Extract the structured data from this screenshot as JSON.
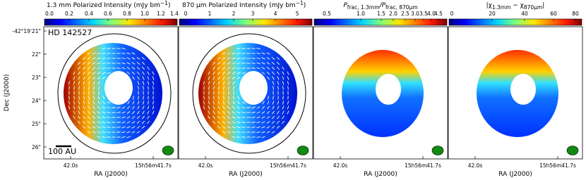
{
  "panels": [
    {
      "colorbar": {
        "label": [
          "1.3 mm Polarized Intensity (mJy bm",
          "−1",
          ")"
        ],
        "ticks": [
          "0.0",
          "0.2",
          "0.4",
          "0.6",
          "0.8",
          "1.0",
          "1.2",
          "1.4"
        ]
      },
      "x_ticks": [
        "42.0s",
        "15h56m41.7s"
      ],
      "x_label": "RA (J2000)"
    },
    {
      "colorbar": {
        "label": [
          "870 μm Polarized Intensity (mJy bm",
          "−1",
          ")"
        ],
        "ticks": [
          "0",
          "1",
          "2",
          "3",
          "4",
          "5"
        ]
      },
      "x_ticks": [
        "42.0s",
        "15h56m41.7s"
      ],
      "x_label": "RA (J2000)"
    },
    {
      "colorbar": {
        "label": [
          "P",
          "frac, 1.3mm",
          "/P",
          "frac, 870μm"
        ],
        "ticks": [
          "0.5",
          "1.0",
          "1.5",
          "2.0",
          "2.5",
          "3.0",
          "3.5",
          "4.0",
          "4.5"
        ]
      },
      "x_ticks": [
        "42.0s",
        "15h56m41.7s"
      ],
      "x_label": "RA (J2000)"
    },
    {
      "colorbar": {
        "label": [
          "|χ",
          "1.3mm",
          " − χ",
          "870μm",
          "|"
        ],
        "ticks": [
          "0",
          "20",
          "40",
          "60",
          "80"
        ]
      },
      "x_ticks": [
        "42.0s",
        "15h56m41.7s"
      ],
      "x_label": "RA (J2000)"
    }
  ],
  "y_axis": {
    "label": "Dec (J2000)",
    "ticks": [
      "-42°19'21\"",
      "22\"",
      "23\"",
      "24\"",
      "25\"",
      "26\""
    ]
  },
  "annotations": {
    "source": "HD 142527",
    "scale_bar": "100 AU"
  }
}
